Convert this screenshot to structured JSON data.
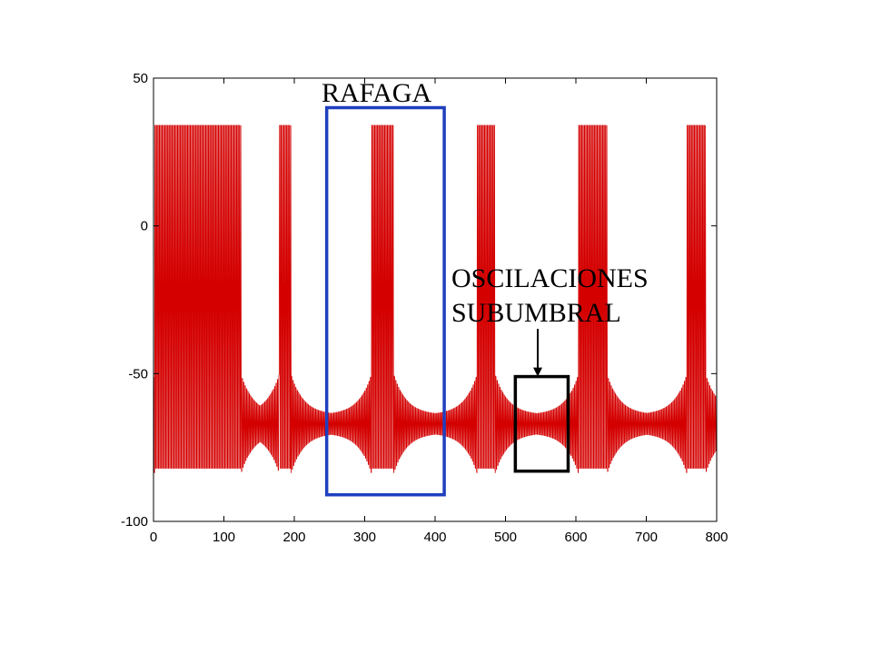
{
  "chart_data": {
    "type": "line",
    "title": "",
    "xlabel": "",
    "ylabel": "",
    "xlim": [
      0,
      800
    ],
    "ylim": [
      -100,
      50
    ],
    "x_ticks": [
      0,
      100,
      200,
      300,
      400,
      500,
      600,
      700,
      800
    ],
    "y_ticks": [
      -100,
      -50,
      0,
      50
    ],
    "grid": false,
    "series": [
      {
        "color": "#d40000",
        "description_bursts": [
          {
            "x_start": 2,
            "x_end": 124
          },
          {
            "x_start": 179,
            "x_end": 195
          },
          {
            "x_start": 310,
            "x_end": 341
          },
          {
            "x_start": 460,
            "x_end": 485
          },
          {
            "x_start": 604,
            "x_end": 644
          },
          {
            "x_start": 758,
            "x_end": 784
          }
        ],
        "spike_peak": 34,
        "spike_trough": -82,
        "rest_level": -67
      }
    ],
    "annotations": [
      {
        "id": "rafaga",
        "label": "RAFAGA",
        "box_color": "#1f3fbf",
        "x_range": [
          246,
          413
        ],
        "y_range": [
          -91,
          40
        ]
      },
      {
        "id": "oscilaciones",
        "label_lines": [
          "OSCILACIONES",
          "SUBUMBRAL"
        ],
        "box_color": "#000000",
        "x_range": [
          514,
          589
        ],
        "y_range": [
          -83,
          -51
        ]
      }
    ]
  }
}
